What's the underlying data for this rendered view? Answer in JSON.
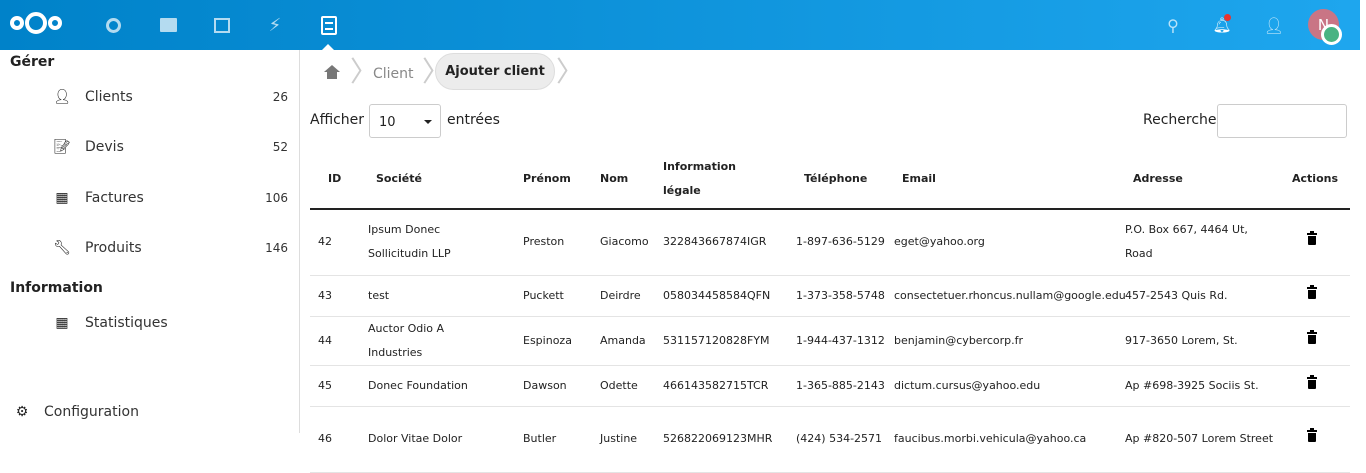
{
  "header": {
    "apps": [
      "dashboard",
      "files",
      "photos",
      "activity",
      "clients-app"
    ],
    "avatar_letter": "N",
    "colors": {
      "brand": "#0082c9",
      "avatar": "#c97585",
      "status": "#49b382",
      "notification": "#e9322d"
    }
  },
  "sidebar": {
    "section_manage": "Gérer",
    "items": [
      {
        "label": "Clients",
        "count": "26",
        "icon": "user-icon"
      },
      {
        "label": "Devis",
        "count": "52",
        "icon": "quote-icon"
      },
      {
        "label": "Factures",
        "count": "106",
        "icon": "grid-icon"
      },
      {
        "label": "Produits",
        "count": "146",
        "icon": "wrench-icon"
      }
    ],
    "section_info": "Information",
    "info_items": [
      {
        "label": "Statistiques",
        "icon": "grid-icon"
      }
    ],
    "settings": "Configuration"
  },
  "breadcrumb": {
    "items": [
      "Client",
      "Ajouter client"
    ]
  },
  "controls": {
    "show_label": "Afficher",
    "entries_value": "10",
    "entries_label": "entrées",
    "search_label": "Recherche",
    "search_value": ""
  },
  "table": {
    "columns": [
      "ID",
      "Société",
      "Prénom",
      "Nom",
      "Information légale",
      "Téléphone",
      "Email",
      "Adresse",
      "Actions"
    ],
    "rows": [
      [
        "42",
        "Ipsum Donec Sollicitudin LLP",
        "Preston",
        "Giacomo",
        "322843667874IGR",
        "1-897-636-5129",
        "eget@yahoo.org",
        "P.O. Box 667, 4464 Ut, Road"
      ],
      [
        "43",
        "test",
        "Puckett",
        "Deirdre",
        "058034458584QFN",
        "1-373-358-5748",
        "consectetuer.rhoncus.nullam@google.edu",
        "457-2543 Quis Rd."
      ],
      [
        "44",
        "Auctor Odio A Industries",
        "Espinoza",
        "Amanda",
        "531157120828FYM",
        "1-944-437-1312",
        "benjamin@cybercorp.fr",
        "917-3650 Lorem, St."
      ],
      [
        "45",
        "Donec Foundation",
        "Dawson",
        "Odette",
        "466143582715TCR",
        "1-365-885-2143",
        "dictum.cursus@yahoo.edu",
        "Ap #698-3925 Sociis St."
      ],
      [
        "46",
        "Dolor Vitae Dolor",
        "Butler",
        "Justine",
        "526822069123MHR",
        "(424) 534-2571",
        "faucibus.morbi.vehicula@yahoo.ca",
        "Ap #820-507 Lorem Street"
      ]
    ]
  }
}
